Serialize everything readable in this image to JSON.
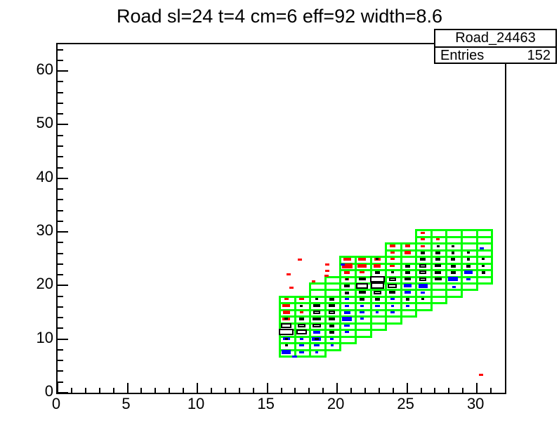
{
  "title": "Road sl=24 t=4 cm=6 eff=92 width=8.6",
  "stats": {
    "hist_name": "Road_24463",
    "entries_label": "Entries",
    "entries_value": "152"
  },
  "chart_data": {
    "type": "heatmap",
    "subtype": "root-2d-box-histogram",
    "title": "Road sl=24 t=4 cm=6 eff=92 width=8.6",
    "hist_name": "Road_24463",
    "entries": 152,
    "grid": false,
    "legend": "none",
    "x_axis": {
      "min": 0,
      "max": 32,
      "major_step": 5,
      "minor_step": 1,
      "major_labels": [
        "0",
        "5",
        "10",
        "15",
        "20",
        "25",
        "30"
      ],
      "tick_len_major": 14,
      "tick_len_minor": 7
    },
    "y_axis": {
      "min": 0,
      "max": 65,
      "major_step": 10,
      "minor_step": 2,
      "major_labels": [
        "0",
        "10",
        "20",
        "30",
        "40",
        "50",
        "60"
      ],
      "tick_len_major": 15,
      "tick_len_minor": 8
    },
    "colors": {
      "road": "#00ff00",
      "r": "#ff0000",
      "b": "#0000ff",
      "w": "#ffffff",
      "k": "#000000",
      "outline": "#000000",
      "frame": "#000000"
    },
    "road": {
      "comment": "columns = [first_row, n_rows] of 1.085x1.239 unit cells; origin x0,y0 in data units",
      "x0": 15.82,
      "y0": 6.95,
      "cell_w": 1.085,
      "cell_h": 1.2385,
      "columns": [
        [
          0,
          9
        ],
        [
          0,
          9
        ],
        [
          0,
          11
        ],
        [
          1,
          11
        ],
        [
          2,
          13
        ],
        [
          3,
          12
        ],
        [
          4,
          11
        ],
        [
          5,
          12
        ],
        [
          6,
          11
        ],
        [
          7,
          12
        ],
        [
          8,
          11
        ],
        [
          9,
          10
        ],
        [
          10,
          9
        ],
        [
          11,
          8
        ]
      ]
    },
    "marks_comment": "each mark = [col, row, size 0-1, type] on road grid; types r=red fill, b=blue fill, w=white box black outline, k=black box",
    "marks": [
      [
        0,
        8,
        0.28,
        "r"
      ],
      [
        1,
        8,
        0.3,
        "r"
      ],
      [
        2,
        8,
        0.18,
        "k"
      ],
      [
        3,
        8,
        0.35,
        "w"
      ],
      [
        4,
        8,
        0.28,
        "b"
      ],
      [
        0,
        7,
        0.5,
        "r"
      ],
      [
        1,
        7,
        0.15,
        "k"
      ],
      [
        2,
        7,
        0.45,
        "w"
      ],
      [
        3,
        7,
        0.4,
        "w"
      ],
      [
        4,
        7,
        0.3,
        "b"
      ],
      [
        0,
        6,
        0.45,
        "r"
      ],
      [
        1,
        6,
        0.22,
        "r"
      ],
      [
        2,
        6,
        0.5,
        "w"
      ],
      [
        3,
        6,
        0.45,
        "w"
      ],
      [
        4,
        6,
        0.42,
        "b"
      ],
      [
        0,
        5,
        0.5,
        "r"
      ],
      [
        0,
        5,
        0.22,
        "k"
      ],
      [
        1,
        5,
        0.35,
        "w"
      ],
      [
        2,
        5,
        0.52,
        "w"
      ],
      [
        3,
        5,
        0.45,
        "w"
      ],
      [
        4,
        5,
        0.65,
        "b"
      ],
      [
        0,
        4,
        0.68,
        "w"
      ],
      [
        1,
        4,
        0.5,
        "w"
      ],
      [
        2,
        4,
        0.52,
        "w"
      ],
      [
        3,
        4,
        0.3,
        "w"
      ],
      [
        4,
        4,
        0.35,
        "b"
      ],
      [
        0,
        3,
        0.97,
        "w"
      ],
      [
        1,
        3,
        0.72,
        "w"
      ],
      [
        2,
        3,
        0.5,
        "b"
      ],
      [
        3,
        3,
        0.33,
        "w"
      ],
      [
        4,
        3,
        0.3,
        "b"
      ],
      [
        0,
        2,
        0.45,
        "b"
      ],
      [
        0,
        2,
        0.2,
        "k"
      ],
      [
        1,
        2,
        0.25,
        "b"
      ],
      [
        2,
        2,
        0.6,
        "b"
      ],
      [
        2,
        2,
        0.3,
        "k"
      ],
      [
        3,
        2,
        0.2,
        "b"
      ],
      [
        0,
        1,
        0.2,
        "k"
      ],
      [
        1,
        1,
        0.3,
        "b"
      ],
      [
        2,
        1,
        0.35,
        "b"
      ],
      [
        3,
        1,
        0.15,
        "b"
      ],
      [
        0,
        0,
        0.6,
        "b"
      ],
      [
        1,
        0,
        0.35,
        "b"
      ],
      [
        2,
        0,
        0.2,
        "b"
      ],
      [
        4,
        14,
        0.5,
        "r"
      ],
      [
        5,
        14,
        0.5,
        "r"
      ],
      [
        6,
        14,
        0.4,
        "r"
      ],
      [
        6,
        14,
        0.18,
        "k"
      ],
      [
        7,
        14,
        0.3,
        "r"
      ],
      [
        4,
        13,
        0.7,
        "r"
      ],
      [
        5,
        13,
        0.6,
        "r"
      ],
      [
        6,
        13,
        0.45,
        "r"
      ],
      [
        7,
        13,
        0.32,
        "r"
      ],
      [
        8,
        13,
        0.3,
        "w"
      ],
      [
        4,
        12,
        0.4,
        "r"
      ],
      [
        5,
        12,
        0.32,
        "r"
      ],
      [
        6,
        12,
        0.35,
        "w"
      ],
      [
        7,
        12,
        0.2,
        "k"
      ],
      [
        8,
        12,
        0.35,
        "w"
      ],
      [
        4,
        11,
        0.3,
        "r"
      ],
      [
        4,
        11,
        0.15,
        "k"
      ],
      [
        5,
        11,
        0.45,
        "w"
      ],
      [
        6,
        11,
        0.95,
        "w"
      ],
      [
        7,
        11,
        0.5,
        "w"
      ],
      [
        8,
        11,
        0.4,
        "w"
      ],
      [
        4,
        10,
        0.35,
        "w"
      ],
      [
        5,
        10,
        0.8,
        "w"
      ],
      [
        6,
        10,
        0.9,
        "w"
      ],
      [
        7,
        10,
        0.6,
        "w"
      ],
      [
        8,
        10,
        0.55,
        "b"
      ],
      [
        9,
        10,
        0.6,
        "b"
      ],
      [
        4,
        9,
        0.3,
        "w"
      ],
      [
        5,
        9,
        0.45,
        "w"
      ],
      [
        6,
        9,
        0.5,
        "w"
      ],
      [
        7,
        9,
        0.42,
        "w"
      ],
      [
        8,
        9,
        0.4,
        "b"
      ],
      [
        9,
        9,
        0.3,
        "b"
      ],
      [
        5,
        8,
        0.3,
        "w"
      ],
      [
        6,
        8,
        0.35,
        "w"
      ],
      [
        7,
        8,
        0.3,
        "b"
      ],
      [
        8,
        8,
        0.25,
        "w"
      ],
      [
        9,
        8,
        0.2,
        "k"
      ],
      [
        5,
        7,
        0.25,
        "b"
      ],
      [
        6,
        7,
        0.3,
        "b"
      ],
      [
        7,
        7,
        0.22,
        "b"
      ],
      [
        8,
        7,
        0.25,
        "b"
      ],
      [
        5,
        6,
        0.3,
        "b"
      ],
      [
        6,
        6,
        0.2,
        "b"
      ],
      [
        7,
        6,
        0.28,
        "b"
      ],
      [
        5,
        5,
        0.22,
        "b"
      ],
      [
        9,
        18,
        0.25,
        "r"
      ],
      [
        9,
        17,
        0.3,
        "r"
      ],
      [
        10,
        17,
        0.22,
        "r"
      ],
      [
        7,
        16,
        0.35,
        "r"
      ],
      [
        8,
        16,
        0.35,
        "r"
      ],
      [
        9,
        16,
        0.28,
        "r"
      ],
      [
        10,
        16,
        0.18,
        "k"
      ],
      [
        11,
        16,
        0.15,
        "k"
      ],
      [
        7,
        15,
        0.3,
        "r"
      ],
      [
        8,
        15,
        0.45,
        "r"
      ],
      [
        9,
        15,
        0.3,
        "w"
      ],
      [
        10,
        15,
        0.3,
        "w"
      ],
      [
        11,
        15,
        0.2,
        "w"
      ],
      [
        12,
        15,
        0.15,
        "k"
      ],
      [
        9,
        14,
        0.4,
        "w"
      ],
      [
        10,
        14,
        0.35,
        "w"
      ],
      [
        11,
        14,
        0.28,
        "w"
      ],
      [
        12,
        14,
        0.2,
        "w"
      ],
      [
        13,
        14,
        0.14,
        "k"
      ],
      [
        9,
        13,
        0.45,
        "w"
      ],
      [
        10,
        13,
        0.4,
        "w"
      ],
      [
        11,
        13,
        0.3,
        "w"
      ],
      [
        12,
        13,
        0.25,
        "w"
      ],
      [
        13,
        13,
        0.15,
        "k"
      ],
      [
        9,
        12,
        0.5,
        "w"
      ],
      [
        10,
        12,
        0.42,
        "w"
      ],
      [
        11,
        12,
        0.35,
        "w"
      ],
      [
        12,
        12,
        0.55,
        "b"
      ],
      [
        13,
        12,
        0.2,
        "w"
      ],
      [
        9,
        11,
        0.5,
        "w"
      ],
      [
        10,
        11,
        0.45,
        "w"
      ],
      [
        11,
        11,
        0.65,
        "b"
      ],
      [
        12,
        11,
        0.3,
        "b"
      ],
      [
        0.89,
        13.9,
        0.3,
        "r"
      ],
      [
        2.69,
        13.2,
        0.25,
        "r"
      ],
      [
        2.69,
        12.2,
        0.25,
        "r"
      ],
      [
        3.71,
        13.2,
        0.25,
        "b"
      ],
      [
        0.15,
        11.67,
        0.25,
        "r"
      ],
      [
        0.33,
        9.66,
        0.25,
        "r"
      ],
      [
        1.81,
        10.7,
        0.25,
        "r"
      ],
      [
        2.65,
        11.5,
        0.28,
        "r"
      ],
      [
        11.07,
        9.77,
        0.25,
        "b"
      ],
      [
        12.88,
        15.58,
        0.25,
        "b"
      ],
      [
        12.83,
        -3.46,
        0.3,
        "r"
      ],
      [
        0.55,
        -0.7,
        0.3,
        "b"
      ]
    ]
  }
}
